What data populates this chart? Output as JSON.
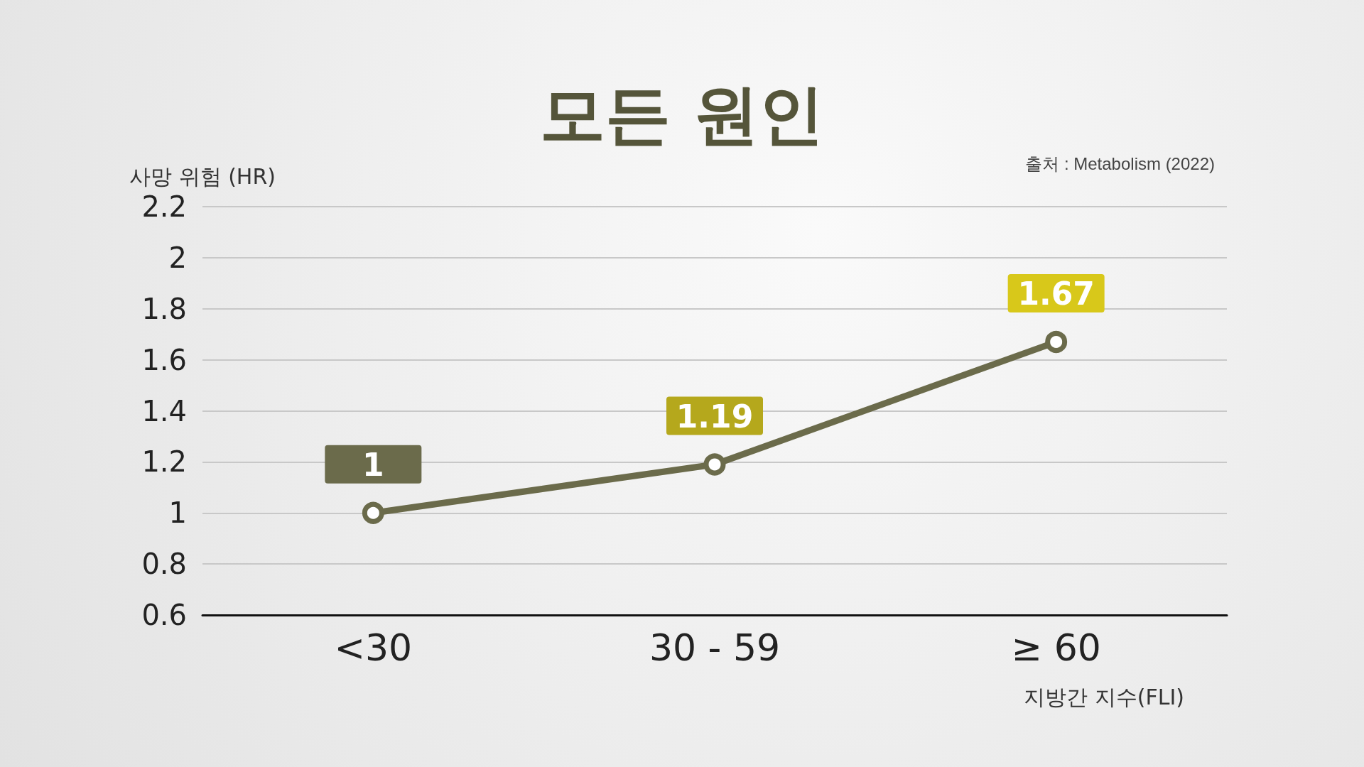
{
  "chart_data": {
    "type": "line",
    "title": "모든 원인",
    "ylabel": "사망 위험 (HR)",
    "xlabel": "지방간 지수(FLI)",
    "annotations": [
      "출처 : Metabolism (2022)"
    ],
    "categories": [
      "<30",
      "30 - 59",
      "≥ 60"
    ],
    "series": [
      {
        "color": "#6b6b4b",
        "values": [
          1,
          1.19,
          1.67
        ],
        "colors": [
          "#6b6b4b",
          "#b5a81c",
          "#d8c81a"
        ]
      }
    ],
    "ylim": [
      0.6,
      2.2
    ],
    "yticks": [
      0.6,
      0.8,
      1,
      1.2,
      1.4,
      1.6,
      1.8,
      2,
      2.2
    ],
    "grid": "y",
    "data_labels": true,
    "marker": "circle",
    "line_style": "solid"
  }
}
